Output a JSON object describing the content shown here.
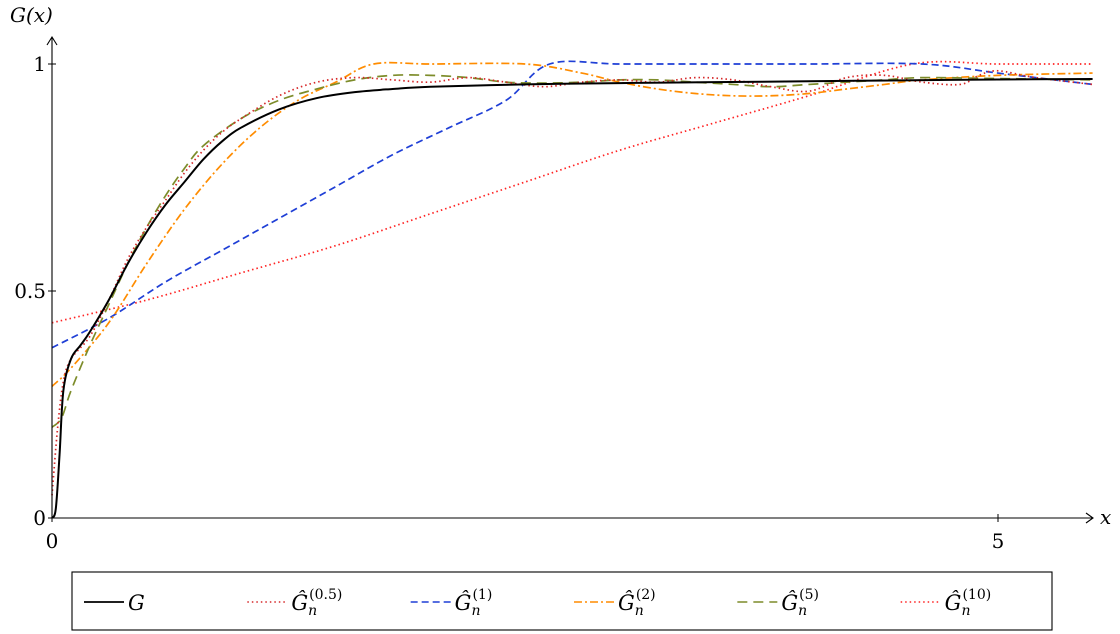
{
  "chart_data": {
    "type": "line",
    "xlabel": "x",
    "ylabel": "G(x)",
    "xlim": [
      0,
      5.5
    ],
    "ylim": [
      0,
      1
    ],
    "x_ticks": [
      {
        "v": 0,
        "label": "0"
      },
      {
        "v": 5,
        "label": "5"
      }
    ],
    "y_ticks": [
      {
        "v": 0,
        "label": "0"
      },
      {
        "v": 0.5,
        "label": "0.5"
      },
      {
        "v": 1,
        "label": "1"
      }
    ],
    "grid": false,
    "legend_position": "bottom",
    "series": [
      {
        "name": "G",
        "label_main": "G",
        "label_sup": "",
        "color": "#000000",
        "dash": "",
        "points": [
          [
            0,
            0
          ],
          [
            0.02,
            0.02
          ],
          [
            0.04,
            0.14
          ],
          [
            0.06,
            0.28
          ],
          [
            0.1,
            0.35
          ],
          [
            0.15,
            0.38
          ],
          [
            0.2,
            0.41
          ],
          [
            0.3,
            0.48
          ],
          [
            0.4,
            0.56
          ],
          [
            0.5,
            0.63
          ],
          [
            0.6,
            0.69
          ],
          [
            0.7,
            0.74
          ],
          [
            0.8,
            0.79
          ],
          [
            0.9,
            0.83
          ],
          [
            1.0,
            0.86
          ],
          [
            1.2,
            0.9
          ],
          [
            1.4,
            0.925
          ],
          [
            1.6,
            0.938
          ],
          [
            1.8,
            0.945
          ],
          [
            2.0,
            0.95
          ],
          [
            2.5,
            0.955
          ],
          [
            3.0,
            0.958
          ],
          [
            3.5,
            0.96
          ],
          [
            4.0,
            0.962
          ],
          [
            4.5,
            0.964
          ],
          [
            5.0,
            0.966
          ],
          [
            5.5,
            0.967
          ]
        ]
      },
      {
        "name": "Ĝn(0.5)",
        "label_main": "Ĝ",
        "label_sup": "(0.5)",
        "color": "#d62728",
        "dash": "1.5,3",
        "points": [
          [
            0,
            0.05
          ],
          [
            0.03,
            0.2
          ],
          [
            0.06,
            0.3
          ],
          [
            0.1,
            0.35
          ],
          [
            0.2,
            0.4
          ],
          [
            0.3,
            0.48
          ],
          [
            0.4,
            0.57
          ],
          [
            0.5,
            0.64
          ],
          [
            0.6,
            0.7
          ],
          [
            0.7,
            0.76
          ],
          [
            0.8,
            0.81
          ],
          [
            0.9,
            0.85
          ],
          [
            1.0,
            0.88
          ],
          [
            1.2,
            0.93
          ],
          [
            1.4,
            0.96
          ],
          [
            1.6,
            0.97
          ],
          [
            1.8,
            0.965
          ],
          [
            2.0,
            0.96
          ],
          [
            2.2,
            0.97
          ],
          [
            2.4,
            0.96
          ],
          [
            2.6,
            0.95
          ],
          [
            2.8,
            0.96
          ],
          [
            3.0,
            0.965
          ],
          [
            3.2,
            0.96
          ],
          [
            3.4,
            0.97
          ],
          [
            3.6,
            0.965
          ],
          [
            3.8,
            0.95
          ],
          [
            4.0,
            0.94
          ],
          [
            4.2,
            0.97
          ],
          [
            4.4,
            0.975
          ],
          [
            4.6,
            0.96
          ],
          [
            4.8,
            0.955
          ],
          [
            4.9,
            0.975
          ],
          [
            5.0,
            0.985
          ],
          [
            5.2,
            0.97
          ],
          [
            5.5,
            0.955
          ]
        ]
      },
      {
        "name": "Ĝn(1)",
        "label_main": "Ĝ",
        "label_sup": "(1)",
        "color": "#1f3fd6",
        "dash": "7,4",
        "points": [
          [
            0,
            0.375
          ],
          [
            0.3,
            0.44
          ],
          [
            0.6,
            0.52
          ],
          [
            0.9,
            0.59
          ],
          [
            1.2,
            0.66
          ],
          [
            1.5,
            0.73
          ],
          [
            1.8,
            0.8
          ],
          [
            2.1,
            0.86
          ],
          [
            2.4,
            0.92
          ],
          [
            2.63,
            1.0
          ],
          [
            3.0,
            1.0
          ],
          [
            3.5,
            1.0
          ],
          [
            4.0,
            1.0
          ],
          [
            4.6,
            1.0
          ],
          [
            5.0,
            0.98
          ],
          [
            5.5,
            0.955
          ]
        ]
      },
      {
        "name": "Ĝn(2)",
        "label_main": "Ĝ",
        "label_sup": "(2)",
        "color": "#ff8c00",
        "dash": "8,3,2,3",
        "points": [
          [
            0,
            0.29
          ],
          [
            0.1,
            0.33
          ],
          [
            0.3,
            0.43
          ],
          [
            0.5,
            0.56
          ],
          [
            0.7,
            0.68
          ],
          [
            0.9,
            0.78
          ],
          [
            1.1,
            0.86
          ],
          [
            1.3,
            0.92
          ],
          [
            1.5,
            0.96
          ],
          [
            1.7,
            1.0
          ],
          [
            2.0,
            1.0
          ],
          [
            2.5,
            1.0
          ],
          [
            2.8,
            0.98
          ],
          [
            3.0,
            0.96
          ],
          [
            3.2,
            0.945
          ],
          [
            3.4,
            0.935
          ],
          [
            3.6,
            0.93
          ],
          [
            3.8,
            0.93
          ],
          [
            4.0,
            0.935
          ],
          [
            4.2,
            0.945
          ],
          [
            4.4,
            0.955
          ],
          [
            4.6,
            0.965
          ],
          [
            5.0,
            0.975
          ],
          [
            5.5,
            0.98
          ]
        ]
      },
      {
        "name": "Ĝn(5)",
        "label_main": "Ĝ",
        "label_sup": "(5)",
        "color": "#7d8c2a",
        "dash": "10,6",
        "points": [
          [
            0,
            0.2
          ],
          [
            0.05,
            0.22
          ],
          [
            0.1,
            0.28
          ],
          [
            0.2,
            0.38
          ],
          [
            0.3,
            0.47
          ],
          [
            0.4,
            0.56
          ],
          [
            0.5,
            0.64
          ],
          [
            0.6,
            0.71
          ],
          [
            0.7,
            0.77
          ],
          [
            0.8,
            0.82
          ],
          [
            1.0,
            0.88
          ],
          [
            1.2,
            0.92
          ],
          [
            1.4,
            0.945
          ],
          [
            1.6,
            0.965
          ],
          [
            1.8,
            0.975
          ],
          [
            2.0,
            0.975
          ],
          [
            2.2,
            0.97
          ],
          [
            2.4,
            0.96
          ],
          [
            2.6,
            0.958
          ],
          [
            2.8,
            0.96
          ],
          [
            3.0,
            0.965
          ],
          [
            3.2,
            0.965
          ],
          [
            3.4,
            0.96
          ],
          [
            3.6,
            0.955
          ],
          [
            3.8,
            0.95
          ],
          [
            4.0,
            0.955
          ],
          [
            4.2,
            0.96
          ],
          [
            4.4,
            0.965
          ],
          [
            4.6,
            0.97
          ],
          [
            5.0,
            0.968
          ],
          [
            5.5,
            0.965
          ]
        ]
      },
      {
        "name": "Ĝn(10)",
        "label_main": "Ĝ",
        "label_sup": "(10)",
        "color": "#ff2222",
        "dash": "1.5,3",
        "points": [
          [
            0,
            0.43
          ],
          [
            0.5,
            0.48
          ],
          [
            1.0,
            0.54
          ],
          [
            1.5,
            0.6
          ],
          [
            2.0,
            0.67
          ],
          [
            2.5,
            0.74
          ],
          [
            3.0,
            0.81
          ],
          [
            3.5,
            0.87
          ],
          [
            4.0,
            0.93
          ],
          [
            4.55,
            1.0
          ],
          [
            5.0,
            1.0
          ],
          [
            5.5,
            1.0
          ]
        ]
      }
    ]
  }
}
